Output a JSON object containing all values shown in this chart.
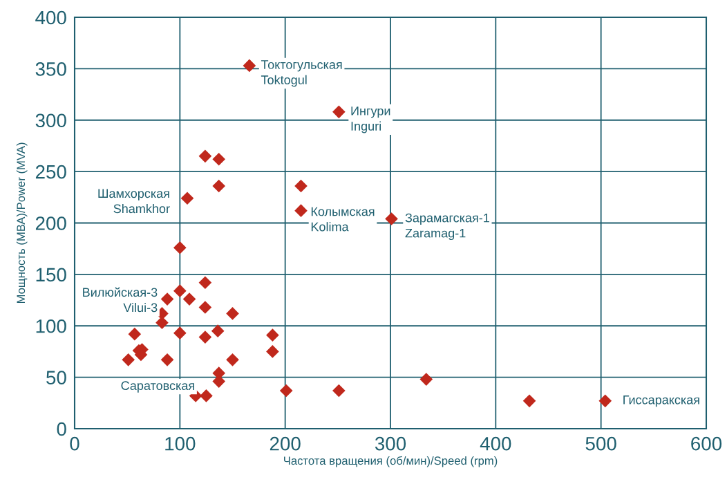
{
  "chart_data": {
    "type": "scatter",
    "xlabel": "Частота вращения (об/мин)/Speed (rpm)",
    "ylabel": "Мощность (МВА)/Power (MVA)",
    "x": [
      166,
      251,
      124,
      137,
      137,
      107,
      215,
      215,
      301,
      100,
      124,
      100,
      88,
      109,
      124,
      83,
      150,
      83,
      57,
      100,
      136,
      124,
      188,
      61,
      64,
      63,
      51,
      88,
      188,
      150,
      137,
      137,
      115,
      125,
      201,
      251,
      334,
      432,
      504
    ],
    "values": [
      353,
      308,
      265,
      262,
      236,
      224,
      236,
      212,
      204,
      176,
      142,
      134,
      126,
      126,
      118,
      112,
      112,
      103,
      92,
      93,
      95,
      89,
      91,
      76,
      77,
      72,
      67,
      67,
      75,
      67,
      54,
      46,
      32,
      32,
      37,
      37,
      48,
      27,
      27
    ],
    "color": "#c0281c",
    "marker": "diamond",
    "xlim": [
      0,
      600
    ],
    "ylim": [
      0,
      400
    ],
    "xticks": [
      0,
      100,
      200,
      300,
      400,
      500,
      600
    ],
    "yticks": [
      0,
      50,
      100,
      150,
      200,
      250,
      300,
      350,
      400
    ],
    "grid": true,
    "annotations": [
      {
        "text": "Токтогульская\nToktogul",
        "x": 166,
        "y": 353
      },
      {
        "text": "Ингури\nInguri",
        "x": 251,
        "y": 308
      },
      {
        "text": "Шамхорская\nShamkhor",
        "x": 107,
        "y": 224
      },
      {
        "text": "Колымская\nKolima",
        "x": 215,
        "y": 212
      },
      {
        "text": "Зарамагская-1\nZaramag-1",
        "x": 301,
        "y": 204
      },
      {
        "text": "Вилюйская-3\nVilui-3",
        "x": 88,
        "y": 126
      },
      {
        "text": "Саратовская",
        "x": 51,
        "y": 67
      },
      {
        "text": "Гиссаракская",
        "x": 504,
        "y": 27
      }
    ]
  }
}
